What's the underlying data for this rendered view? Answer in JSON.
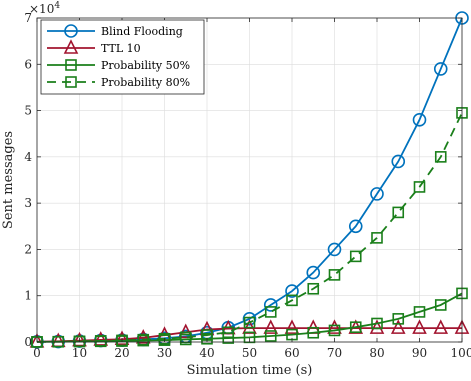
{
  "chart_data": {
    "type": "line",
    "title": "",
    "xlabel": "Simulation time (s)",
    "ylabel": "Sent messages",
    "y_exponent_label": "×10",
    "y_exponent_power": "4",
    "xlim": [
      0,
      100
    ],
    "ylim": [
      0,
      70000
    ],
    "x_ticks": [
      0,
      10,
      20,
      30,
      40,
      50,
      60,
      70,
      80,
      90,
      100
    ],
    "y_ticks": [
      0,
      10000,
      20000,
      30000,
      40000,
      50000,
      60000,
      70000
    ],
    "y_tick_labels": [
      "0",
      "1",
      "2",
      "3",
      "4",
      "5",
      "6",
      "7"
    ],
    "grid": true,
    "legend_position": "top-left",
    "x": [
      0,
      5,
      10,
      15,
      20,
      25,
      30,
      35,
      40,
      45,
      50,
      55,
      60,
      65,
      70,
      75,
      80,
      85,
      90,
      95,
      100
    ],
    "series": [
      {
        "name": "Blind Flooding",
        "color": "#0072BD",
        "marker": "circle",
        "dash": "solid",
        "values": [
          50,
          100,
          200,
          300,
          400,
          550,
          800,
          1200,
          2000,
          3100,
          5000,
          8000,
          11000,
          15000,
          20000,
          25000,
          32000,
          39000,
          48000,
          59000,
          70000
        ]
      },
      {
        "name": "TTL 10",
        "color": "#A2142F",
        "marker": "triangle",
        "dash": "solid",
        "values": [
          50,
          150,
          300,
          450,
          600,
          900,
          1500,
          2100,
          2700,
          2900,
          3000,
          3000,
          3000,
          3000,
          3000,
          3000,
          3000,
          3000,
          3000,
          3000,
          3000
        ]
      },
      {
        "name": "Probability 50%",
        "color": "#1A7F1A",
        "marker": "square",
        "dash": "solid",
        "values": [
          20,
          50,
          100,
          150,
          200,
          300,
          400,
          550,
          700,
          850,
          1000,
          1300,
          1600,
          2000,
          2500,
          3200,
          4000,
          5000,
          6500,
          8000,
          10500
        ]
      },
      {
        "name": "Probability 80%",
        "color": "#1A7F1A",
        "marker": "square",
        "dash": "dashed",
        "values": [
          20,
          60,
          150,
          250,
          350,
          500,
          700,
          1000,
          1500,
          2100,
          4200,
          6500,
          9000,
          11500,
          14500,
          18500,
          22500,
          28000,
          33500,
          40000,
          49500
        ]
      }
    ]
  }
}
